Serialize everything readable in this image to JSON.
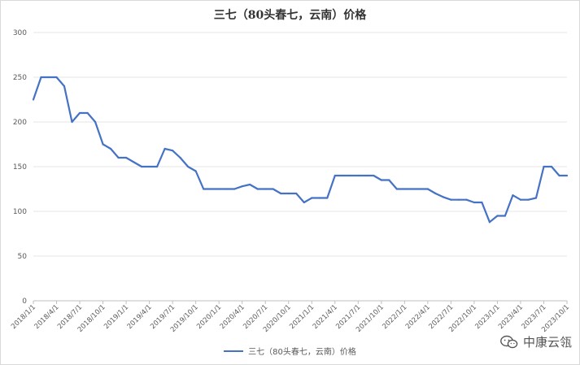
{
  "chart_data": {
    "type": "line",
    "title": "三七（80头春七，云南）价格",
    "xlabel": "",
    "ylabel": "",
    "ylim": [
      0,
      300
    ],
    "yticks": [
      "0",
      "50",
      "100",
      "150",
      "200",
      "250",
      "300"
    ],
    "grid": "horizontal",
    "legend_position": "bottom",
    "line_color": "#4472c4",
    "xtick_labels": [
      "2018/1/1",
      "2018/4/1",
      "2018/7/1",
      "2018/10/1",
      "2019/1/1",
      "2019/4/1",
      "2019/7/1",
      "2019/10/1",
      "2020/1/1",
      "2020/4/1",
      "2020/7/1",
      "2020/10/1",
      "2021/1/1",
      "2021/4/1",
      "2021/7/1",
      "2021/10/1",
      "2022/1/1",
      "2022/4/1",
      "2022/7/1",
      "2022/10/1",
      "2023/1/1",
      "2023/4/1",
      "2023/7/1",
      "2023/10/1"
    ],
    "series": [
      {
        "name": "三七（80头春七，云南）价格",
        "x": [
          "2018/1/1",
          "2018/2/1",
          "2018/3/1",
          "2018/4/1",
          "2018/5/1",
          "2018/6/1",
          "2018/7/1",
          "2018/8/1",
          "2018/9/1",
          "2018/10/1",
          "2018/11/1",
          "2018/12/1",
          "2019/1/1",
          "2019/2/1",
          "2019/3/1",
          "2019/4/1",
          "2019/5/1",
          "2019/6/1",
          "2019/7/1",
          "2019/8/1",
          "2019/9/1",
          "2019/10/1",
          "2019/11/1",
          "2019/12/1",
          "2020/1/1",
          "2020/2/1",
          "2020/3/1",
          "2020/4/1",
          "2020/5/1",
          "2020/6/1",
          "2020/7/1",
          "2020/8/1",
          "2020/9/1",
          "2020/10/1",
          "2020/11/1",
          "2020/12/1",
          "2021/1/1",
          "2021/2/1",
          "2021/3/1",
          "2021/4/1",
          "2021/5/1",
          "2021/6/1",
          "2021/7/1",
          "2021/8/1",
          "2021/9/1",
          "2021/10/1",
          "2021/11/1",
          "2021/12/1",
          "2022/1/1",
          "2022/2/1",
          "2022/3/1",
          "2022/4/1",
          "2022/5/1",
          "2022/6/1",
          "2022/7/1",
          "2022/8/1",
          "2022/9/1",
          "2022/10/1",
          "2022/11/1",
          "2022/12/1",
          "2023/1/1",
          "2023/2/1",
          "2023/3/1",
          "2023/4/1",
          "2023/5/1",
          "2023/6/1",
          "2023/7/1",
          "2023/8/1",
          "2023/9/1",
          "2023/10/1"
        ],
        "values": [
          225,
          250,
          250,
          250,
          240,
          200,
          210,
          210,
          200,
          175,
          170,
          160,
          160,
          155,
          150,
          150,
          150,
          170,
          168,
          160,
          150,
          145,
          125,
          125,
          125,
          125,
          125,
          128,
          130,
          125,
          125,
          125,
          120,
          120,
          120,
          110,
          115,
          115,
          115,
          140,
          140,
          140,
          140,
          140,
          140,
          135,
          135,
          125,
          125,
          125,
          125,
          125,
          120,
          116,
          113,
          113,
          113,
          110,
          110,
          88,
          95,
          95,
          118,
          113,
          113,
          115,
          150,
          150,
          140,
          140
        ]
      }
    ]
  },
  "legend_label": "三七（80头春七，云南）价格",
  "watermark": {
    "text": "中康云瓴",
    "icon": "wechat-icon"
  }
}
